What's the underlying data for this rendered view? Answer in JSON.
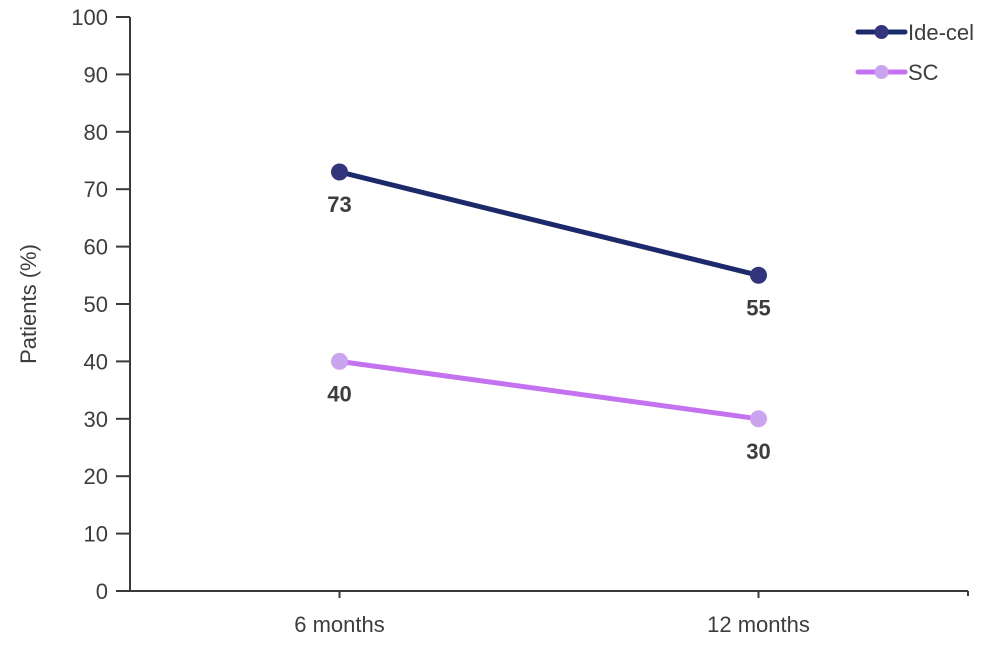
{
  "chart_data": {
    "type": "line",
    "title": "",
    "xlabel": "",
    "ylabel": "Patients (%)",
    "categories": [
      "6 months",
      "12 months"
    ],
    "series": [
      {
        "name": "Ide-cel",
        "values": [
          73,
          55
        ],
        "data_labels": [
          "73",
          "55"
        ],
        "line_color": "#1c2a6b",
        "marker_color": "#33347e"
      },
      {
        "name": "SC",
        "values": [
          40,
          30
        ],
        "data_labels": [
          "40",
          "30"
        ],
        "line_color": "#c472f0",
        "marker_color": "#cba4ef"
      }
    ],
    "ylim": [
      0,
      100
    ],
    "ytick_labels": [
      "0",
      "10",
      "20",
      "30",
      "40",
      "50",
      "60",
      "70",
      "80",
      "90",
      "100"
    ],
    "grid": false,
    "legend_position": "top-right",
    "colors": {
      "axis": "#3a3a3a",
      "tick_label": "#3d3d3d",
      "data_label": "#3d3d3d",
      "legend_text": "#3d3d3d",
      "background": "#ffffff"
    }
  }
}
